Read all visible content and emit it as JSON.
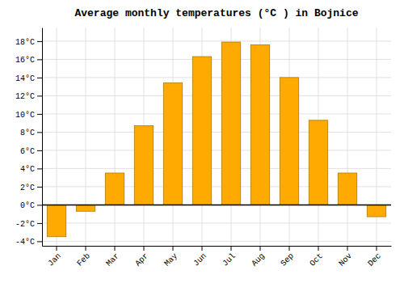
{
  "chart_data": {
    "type": "bar",
    "title": "Average monthly temperatures (°C ) in Bojnice",
    "categories": [
      "Jan",
      "Feb",
      "Mar",
      "Apr",
      "May",
      "Jun",
      "Jul",
      "Aug",
      "Sep",
      "Oct",
      "Nov",
      "Dec"
    ],
    "values": [
      -3.5,
      -0.7,
      3.5,
      8.7,
      13.4,
      16.3,
      17.9,
      17.6,
      14.0,
      9.3,
      3.5,
      -1.3
    ],
    "color": "#FFAA00",
    "ylim": [
      -4.5,
      19.5
    ],
    "yticks": [
      {
        "value": -4,
        "label": "-4°C"
      },
      {
        "value": -2,
        "label": "-2°C"
      },
      {
        "value": 0,
        "label": "0°C"
      },
      {
        "value": 2,
        "label": "2°C"
      },
      {
        "value": 4,
        "label": "4°C"
      },
      {
        "value": 6,
        "label": "6°C"
      },
      {
        "value": 8,
        "label": "8°C"
      },
      {
        "value": 10,
        "label": "10°C"
      },
      {
        "value": 12,
        "label": "12°C"
      },
      {
        "value": 14,
        "label": "14°C"
      },
      {
        "value": 16,
        "label": "16°C"
      },
      {
        "value": 18,
        "label": "18°C"
      }
    ],
    "grid": true
  }
}
